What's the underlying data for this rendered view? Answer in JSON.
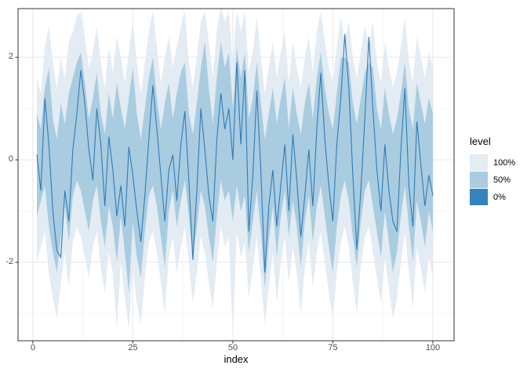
{
  "colors": {
    "background": "#ffffff",
    "panel_border": "#333333",
    "grid_major": "#e8e8e8",
    "grid_minor": "#f4f4f4",
    "tick_mark": "#333333",
    "tick_label": "#4d4d4d",
    "band_100": "#e3ebf3",
    "band_50": "#a9cce0",
    "line": "#2f7bb8"
  },
  "axes": {
    "x": {
      "title": "index",
      "tick_labels": [
        "0",
        "25",
        "50",
        "75",
        "100"
      ],
      "tick_values": [
        0,
        25,
        50,
        75,
        100
      ],
      "minor_values": [
        12.5,
        37.5,
        62.5,
        87.5
      ]
    },
    "y": {
      "title": "",
      "tick_labels": [
        "2",
        "0",
        "-2"
      ],
      "tick_values": [
        2,
        0,
        -2
      ],
      "minor_values": [
        1,
        -1,
        -3
      ]
    }
  },
  "legend": {
    "title": "level",
    "items": [
      {
        "label": "100%",
        "color": "#e3ebf3"
      },
      {
        "label": "50%",
        "color": "#a9cce0"
      },
      {
        "label": "0%",
        "color": "#3583bc"
      }
    ]
  },
  "chart_data": {
    "type": "area",
    "title": "",
    "xlabel": "index",
    "ylabel": "",
    "xlim": [
      -3.7,
      105.3
    ],
    "ylim": [
      -3.53,
      2.95
    ],
    "grid": true,
    "legend_position": "right",
    "legend_title": "level",
    "x": [
      1,
      2,
      3,
      4,
      5,
      6,
      7,
      8,
      9,
      10,
      11,
      12,
      13,
      14,
      15,
      16,
      17,
      18,
      19,
      20,
      21,
      22,
      23,
      24,
      25,
      26,
      27,
      28,
      29,
      30,
      31,
      32,
      33,
      34,
      35,
      36,
      37,
      38,
      39,
      40,
      41,
      42,
      43,
      44,
      45,
      46,
      47,
      48,
      49,
      50,
      51,
      52,
      53,
      54,
      55,
      56,
      57,
      58,
      59,
      60,
      61,
      62,
      63,
      64,
      65,
      66,
      67,
      68,
      69,
      70,
      71,
      72,
      73,
      74,
      75,
      76,
      77,
      78,
      79,
      80,
      81,
      82,
      83,
      84,
      85,
      86,
      87,
      88,
      89,
      90,
      91,
      92,
      93,
      94,
      95,
      96,
      97,
      98,
      99,
      100
    ],
    "series": [
      {
        "name": "100% interval upper",
        "values": [
          1.6,
          1.3,
          2.2,
          2.6,
          1.9,
          1.4,
          2.0,
          1.6,
          2.3,
          2.5,
          2.8,
          2.9,
          2.4,
          1.8,
          2.1,
          2.6,
          1.9,
          1.4,
          2.2,
          1.7,
          2.4,
          2.0,
          1.5,
          2.1,
          2.7,
          1.9,
          1.3,
          1.9,
          2.5,
          2.9,
          2.2,
          1.5,
          2.0,
          2.4,
          1.8,
          2.2,
          2.6,
          2.9,
          1.9,
          1.4,
          2.0,
          2.7,
          2.9,
          2.3,
          1.6,
          2.5,
          3.0,
          2.7,
          2.9,
          1.9,
          2.9,
          2.5,
          2.9,
          1.7,
          2.1,
          2.8,
          2.0,
          1.3,
          1.8,
          2.3,
          1.6,
          2.1,
          2.5,
          1.5,
          2.3,
          1.8,
          1.4,
          2.0,
          2.4,
          1.7,
          2.5,
          2.9,
          2.3,
          1.8,
          1.5,
          2.2,
          2.8,
          2.3,
          2.7,
          2.0,
          1.6,
          2.1,
          2.6,
          2.2,
          2.7,
          1.9,
          1.5,
          2.3,
          1.8,
          1.4,
          1.7,
          2.2,
          2.8,
          1.9,
          1.5,
          2.4,
          2.0,
          1.6,
          2.1,
          1.8
        ]
      },
      {
        "name": "100% interval lower",
        "values": [
          -2.0,
          -1.7,
          -1.4,
          -2.2,
          -2.7,
          -3.1,
          -2.4,
          -1.8,
          -2.5,
          -1.6,
          -1.3,
          -1.5,
          -1.9,
          -2.3,
          -1.7,
          -1.4,
          -2.1,
          -2.6,
          -1.8,
          -2.2,
          -3.3,
          -2.0,
          -2.7,
          -3.3,
          -2.1,
          -2.8,
          -3.2,
          -2.3,
          -1.6,
          -1.4,
          -1.8,
          -2.4,
          -3.0,
          -1.9,
          -1.5,
          -2.2,
          -1.7,
          -1.3,
          -2.0,
          -2.8,
          -2.2,
          -1.5,
          -1.8,
          -2.4,
          -2.9,
          -2.0,
          -1.3,
          -1.7,
          -1.5,
          -3.4,
          -1.4,
          -1.9,
          -1.6,
          -2.7,
          -2.1,
          -1.5,
          -2.3,
          -3.2,
          -2.5,
          -1.8,
          -2.8,
          -2.0,
          -1.5,
          -2.4,
          -1.7,
          -2.2,
          -3.0,
          -2.1,
          -1.6,
          -2.5,
          -1.8,
          -1.4,
          -2.0,
          -2.6,
          -3.1,
          -2.2,
          -1.6,
          -1.3,
          -1.7,
          -2.4,
          -3.0,
          -2.1,
          -1.5,
          -1.3,
          -1.8,
          -2.3,
          -2.8,
          -1.9,
          -2.5,
          -3.1,
          -2.7,
          -2.0,
          -1.4,
          -2.2,
          -2.9,
          -1.7,
          -2.1,
          -2.6,
          -1.9,
          -2.3
        ]
      },
      {
        "name": "50% interval upper",
        "values": [
          0.9,
          0.6,
          1.4,
          1.8,
          0.8,
          0.4,
          1.1,
          0.7,
          1.3,
          1.6,
          1.9,
          2.1,
          1.5,
          0.8,
          1.2,
          1.7,
          0.9,
          0.5,
          1.3,
          0.8,
          1.5,
          1.0,
          0.6,
          1.2,
          1.8,
          0.9,
          0.4,
          1.0,
          1.6,
          2.0,
          1.2,
          0.6,
          1.1,
          1.5,
          0.8,
          1.3,
          1.7,
          1.9,
          0.9,
          0.5,
          1.1,
          1.8,
          2.3,
          1.4,
          0.7,
          1.6,
          2.3,
          1.8,
          2.1,
          1.0,
          2.2,
          1.6,
          2.1,
          0.8,
          1.2,
          1.9,
          1.1,
          0.4,
          0.9,
          1.4,
          0.7,
          1.2,
          1.6,
          0.6,
          1.4,
          0.9,
          0.5,
          1.1,
          1.5,
          0.8,
          1.6,
          2.1,
          1.4,
          0.9,
          0.6,
          1.3,
          2.0,
          2.0,
          1.9,
          1.1,
          0.7,
          1.2,
          1.7,
          1.9,
          1.8,
          1.0,
          0.6,
          1.4,
          0.9,
          0.5,
          0.8,
          1.3,
          1.9,
          1.0,
          0.6,
          1.5,
          1.1,
          0.7,
          1.2,
          0.9
        ]
      },
      {
        "name": "50% interval lower",
        "values": [
          -1.1,
          -0.8,
          -0.5,
          -1.3,
          -1.8,
          -2.2,
          -1.5,
          -0.9,
          -1.6,
          -0.7,
          -0.4,
          -0.6,
          -1.0,
          -1.4,
          -0.8,
          -0.5,
          -1.2,
          -1.7,
          -0.9,
          -1.3,
          -2.0,
          -1.1,
          -1.8,
          -2.6,
          -1.2,
          -1.9,
          -2.3,
          -1.4,
          -0.7,
          -0.5,
          -0.9,
          -1.5,
          -2.1,
          -1.0,
          -0.6,
          -1.3,
          -0.8,
          -0.4,
          -1.1,
          -1.9,
          -1.3,
          -0.6,
          -0.9,
          -1.5,
          -2.0,
          -1.1,
          -0.4,
          -0.8,
          -0.6,
          -1.2,
          -0.5,
          -1.0,
          -0.7,
          -1.8,
          -1.2,
          -0.6,
          -1.4,
          -2.5,
          -1.6,
          -0.9,
          -1.9,
          -1.1,
          -0.6,
          -1.5,
          -0.8,
          -1.3,
          -2.1,
          -1.2,
          -0.7,
          -1.6,
          -0.9,
          -0.5,
          -1.1,
          -1.7,
          -2.2,
          -1.3,
          -0.7,
          -0.4,
          -0.8,
          -1.5,
          -2.1,
          -1.2,
          -0.6,
          -0.4,
          -0.9,
          -1.4,
          -1.9,
          -1.0,
          -1.6,
          -2.2,
          -1.8,
          -1.1,
          -0.5,
          -1.3,
          -2.0,
          -0.8,
          -1.2,
          -1.7,
          -1.0,
          -1.4
        ]
      },
      {
        "name": "0% median line",
        "values": [
          0.1,
          -0.6,
          1.2,
          0.3,
          -1.0,
          -1.77,
          -1.9,
          -0.6,
          -1.2,
          0.2,
          0.9,
          1.75,
          1.1,
          0.2,
          -0.4,
          1.0,
          0.3,
          -0.9,
          0.45,
          -0.2,
          -1.1,
          -0.5,
          -1.3,
          0.25,
          -0.3,
          -1.0,
          -1.6,
          -0.7,
          0.4,
          1.45,
          0.6,
          -0.3,
          -1.2,
          -0.2,
          0.1,
          -0.8,
          0.3,
          0.95,
          -0.4,
          -1.95,
          -0.6,
          1.0,
          0.2,
          -0.7,
          -1.2,
          0.4,
          1.3,
          0.6,
          1.0,
          0.0,
          1.9,
          0.3,
          1.75,
          -1.4,
          -0.3,
          1.35,
          -0.2,
          -2.2,
          -0.9,
          -0.2,
          -1.3,
          -0.5,
          0.3,
          -1.0,
          0.5,
          -0.4,
          -1.5,
          -0.7,
          0.2,
          -0.9,
          0.6,
          1.7,
          0.4,
          -0.5,
          -1.2,
          0.3,
          1.2,
          2.45,
          1.4,
          -0.3,
          -1.75,
          -0.6,
          0.8,
          2.4,
          1.0,
          -0.2,
          -1.0,
          0.3,
          -0.6,
          -1.2,
          -1.4,
          0.2,
          1.4,
          -0.5,
          -1.3,
          0.75,
          -0.1,
          -0.9,
          -0.3,
          -0.7
        ]
      }
    ]
  }
}
